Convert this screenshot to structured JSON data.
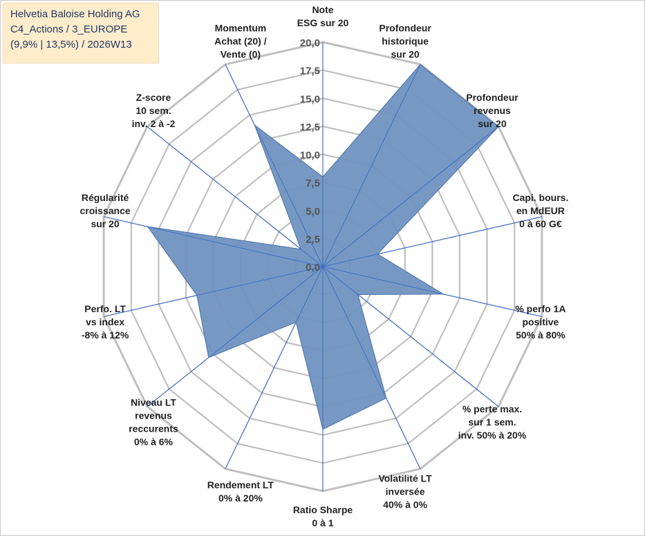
{
  "header": {
    "line1": "Helvetia Baloise Holding AG",
    "line2": "C4_Actions / 3_EUROPE",
    "line3": "(9,9% | 13,5%) / 2026W13"
  },
  "chart_data": {
    "type": "radar",
    "title": "Helvetia Baloise Holding AG",
    "range": [
      0,
      20
    ],
    "ticks": [
      "0,0",
      "2,5",
      "5,0",
      "7,5",
      "10,0",
      "12,5",
      "15,0",
      "17,5",
      "20,0"
    ],
    "axes": [
      {
        "label": [
          "Note",
          "ESG sur 20"
        ],
        "value": 8.0
      },
      {
        "label": [
          "Profondeur",
          "historique",
          "sur 20"
        ],
        "value": 20.0
      },
      {
        "label": [
          "Profondeur",
          "revenus",
          "sur 20"
        ],
        "value": 20.0
      },
      {
        "label": [
          "Capi. bours.",
          "en MdEUR",
          "0 à 60 G€"
        ],
        "value": 5.0
      },
      {
        "label": [
          "% perfo 1A",
          "positive",
          "50% à 80%"
        ],
        "value": 11.0
      },
      {
        "label": [
          "% perte max.",
          "sur 1 sem.",
          "inv. 50% à 20%"
        ],
        "value": 4.0
      },
      {
        "label": [
          "Volatilité LT",
          "inversée",
          "40% à 0%"
        ],
        "value": 13.0
      },
      {
        "label": [
          "Ratio Sharpe",
          "0 à 1"
        ],
        "value": 14.5
      },
      {
        "label": [
          "Rendement LT",
          "0% à 20%"
        ],
        "value": 5.5
      },
      {
        "label": [
          "Niveau LT",
          "revenus",
          "reccurents",
          "0% à 6%"
        ],
        "value": 13.0
      },
      {
        "label": [
          "Perfo. LT",
          "vs index",
          "-8% à 12%"
        ],
        "value": 11.5
      },
      {
        "label": [
          "Régularité",
          "croissance",
          "sur 20"
        ],
        "value": 16.0
      },
      {
        "label": [
          "Z-score",
          "10 sem.",
          "inv. 2 à -2"
        ],
        "value": 2.5
      },
      {
        "label": [
          "Momentum",
          "Achat (20) /",
          "Vente (0)"
        ],
        "value": 14.0
      }
    ],
    "colors": {
      "fill": "#6f92bf",
      "stroke": "#4a72a8",
      "spoke": "#4472c4",
      "grid": "#bfbfbf"
    }
  }
}
